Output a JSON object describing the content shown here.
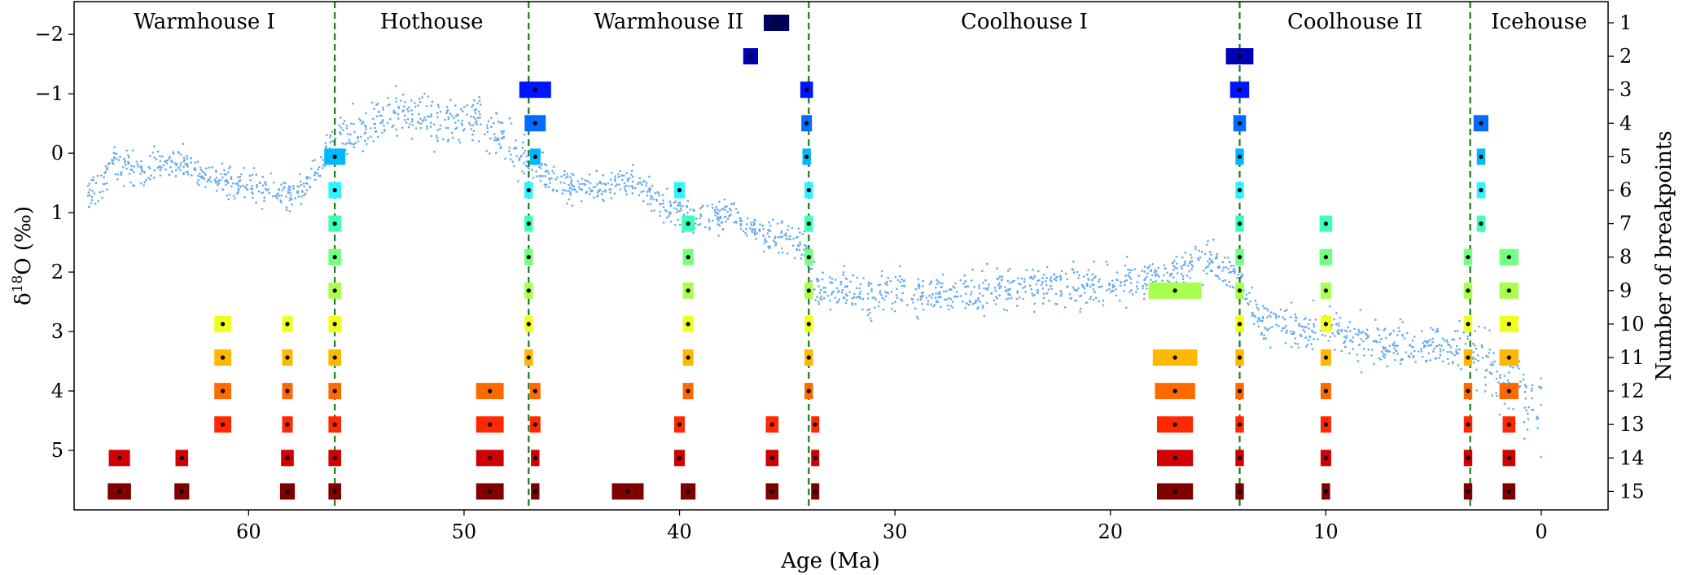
{
  "chart_data": {
    "type": "scatter",
    "xlabel": "Age (Ma)",
    "ylabel_main": "δ",
    "ylabel_sup": "18",
    "ylabel_rest": "O (‰)",
    "ylabel_right": "Number of breakpoints",
    "xlim": [
      68.1,
      -3.1
    ],
    "ylim": [
      6.0,
      -2.55
    ],
    "y_inverted": true,
    "x_ticks": [
      60,
      50,
      40,
      30,
      20,
      10,
      0
    ],
    "y_ticks": [
      {
        "value": -2,
        "label": "−2"
      },
      {
        "value": -1,
        "label": "−1"
      },
      {
        "value": 0,
        "label": "0"
      },
      {
        "value": 1,
        "label": "1"
      },
      {
        "value": 2,
        "label": "2"
      },
      {
        "value": 3,
        "label": "3"
      },
      {
        "value": 4,
        "label": "4"
      },
      {
        "value": 5,
        "label": "5"
      }
    ],
    "right_ticks": [
      "1",
      "2",
      "3",
      "4",
      "5",
      "6",
      "7",
      "8",
      "9",
      "10",
      "11",
      "12",
      "13",
      "14",
      "15"
    ],
    "epochs": [
      {
        "label": "Warmhouse I",
        "start": 68.1,
        "end": 56.0
      },
      {
        "label": "Hothouse",
        "start": 56.0,
        "end": 47.0
      },
      {
        "label": "Warmhouse II",
        "start": 47.0,
        "end": 34.0
      },
      {
        "label": "Coolhouse I",
        "start": 34.0,
        "end": 14.0
      },
      {
        "label": "Coolhouse II",
        "start": 14.0,
        "end": 3.3
      },
      {
        "label": "Icehouse",
        "start": 3.3,
        "end": -3.1
      }
    ],
    "boundaries": [
      56.0,
      47.0,
      34.0,
      14.0,
      3.3
    ],
    "boundary_color": "#1a7a1a",
    "series_color": "#64aaf0",
    "series_name": "δ18O record",
    "curve_anchor_points": [
      [
        67.5,
        0.8
      ],
      [
        66.9,
        0.6
      ],
      [
        66.4,
        0.1
      ],
      [
        65.8,
        0.2
      ],
      [
        65.0,
        0.3
      ],
      [
        64.0,
        0.2
      ],
      [
        63.0,
        0.15
      ],
      [
        62.0,
        0.45
      ],
      [
        61.0,
        0.5
      ],
      [
        60.0,
        0.55
      ],
      [
        59.0,
        0.6
      ],
      [
        58.0,
        0.75
      ],
      [
        57.0,
        0.4
      ],
      [
        56.0,
        -0.3
      ],
      [
        55.0,
        -0.3
      ],
      [
        54.0,
        -0.5
      ],
      [
        53.0,
        -0.7
      ],
      [
        52.0,
        -0.65
      ],
      [
        51.0,
        -0.6
      ],
      [
        50.0,
        -0.6
      ],
      [
        49.0,
        -0.45
      ],
      [
        48.0,
        -0.2
      ],
      [
        47.0,
        0.2
      ],
      [
        46.0,
        0.4
      ],
      [
        45.0,
        0.55
      ],
      [
        44.0,
        0.6
      ],
      [
        43.0,
        0.5
      ],
      [
        42.0,
        0.55
      ],
      [
        41.0,
        0.85
      ],
      [
        40.0,
        1.0
      ],
      [
        39.0,
        1.15
      ],
      [
        38.0,
        1.0
      ],
      [
        37.0,
        1.2
      ],
      [
        36.0,
        1.35
      ],
      [
        35.0,
        1.4
      ],
      [
        34.2,
        1.6
      ],
      [
        33.7,
        2.3
      ],
      [
        33.0,
        2.3
      ],
      [
        30.0,
        2.35
      ],
      [
        27.0,
        2.35
      ],
      [
        24.0,
        2.25
      ],
      [
        22.0,
        2.25
      ],
      [
        20.0,
        2.2
      ],
      [
        18.0,
        2.1
      ],
      [
        17.0,
        2.05
      ],
      [
        16.0,
        1.85
      ],
      [
        15.0,
        1.9
      ],
      [
        14.0,
        2.1
      ],
      [
        13.5,
        2.5
      ],
      [
        13.0,
        2.8
      ],
      [
        12.0,
        2.85
      ],
      [
        11.0,
        3.0
      ],
      [
        10.0,
        2.95
      ],
      [
        9.0,
        3.1
      ],
      [
        8.0,
        3.2
      ],
      [
        7.0,
        3.25
      ],
      [
        6.0,
        3.3
      ],
      [
        5.0,
        3.2
      ],
      [
        4.0,
        3.25
      ],
      [
        3.3,
        3.3
      ],
      [
        2.5,
        3.6
      ],
      [
        2.0,
        3.85
      ],
      [
        1.5,
        3.9
      ],
      [
        1.0,
        4.0
      ],
      [
        0.5,
        4.2
      ],
      [
        0.0,
        4.4
      ]
    ],
    "breakpoint_colors": [
      "#00005f",
      "#0000b4",
      "#0014ff",
      "#006cff",
      "#00b8ff",
      "#2ef4ff",
      "#3cffb8",
      "#72ff82",
      "#a8ff4e",
      "#f0ff1e",
      "#ffb800",
      "#ff6a00",
      "#ff2800",
      "#d00000",
      "#800000"
    ],
    "breakpoints": [
      {
        "row": 1,
        "points": [
          [
            35.5,
            1.2
          ]
        ]
      },
      {
        "row": 2,
        "points": [
          [
            36.7,
            0.7
          ],
          [
            14.0,
            1.3
          ]
        ]
      },
      {
        "row": 3,
        "points": [
          [
            46.7,
            1.5
          ],
          [
            34.1,
            0.6
          ],
          [
            14.0,
            0.9
          ]
        ]
      },
      {
        "row": 4,
        "points": [
          [
            46.7,
            1.0
          ],
          [
            34.1,
            0.5
          ],
          [
            14.0,
            0.6
          ],
          [
            2.8,
            0.7
          ]
        ]
      },
      {
        "row": 5,
        "points": [
          [
            56.0,
            1.0
          ],
          [
            46.7,
            0.5
          ],
          [
            34.1,
            0.4
          ],
          [
            14.0,
            0.4
          ],
          [
            2.8,
            0.4
          ]
        ]
      },
      {
        "row": 6,
        "points": [
          [
            56.0,
            0.6
          ],
          [
            47.0,
            0.4
          ],
          [
            40.0,
            0.5
          ],
          [
            34.0,
            0.4
          ],
          [
            14.0,
            0.4
          ],
          [
            2.8,
            0.4
          ]
        ]
      },
      {
        "row": 7,
        "points": [
          [
            56.0,
            0.6
          ],
          [
            47.0,
            0.4
          ],
          [
            39.6,
            0.6
          ],
          [
            34.0,
            0.4
          ],
          [
            14.0,
            0.4
          ],
          [
            10.0,
            0.6
          ],
          [
            2.8,
            0.4
          ]
        ]
      },
      {
        "row": 8,
        "points": [
          [
            56.0,
            0.6
          ],
          [
            47.0,
            0.4
          ],
          [
            39.6,
            0.5
          ],
          [
            34.0,
            0.4
          ],
          [
            14.0,
            0.4
          ],
          [
            10.0,
            0.6
          ],
          [
            3.4,
            0.4
          ],
          [
            1.5,
            0.9
          ]
        ]
      },
      {
        "row": 9,
        "points": [
          [
            56.0,
            0.6
          ],
          [
            47.0,
            0.4
          ],
          [
            39.6,
            0.5
          ],
          [
            34.0,
            0.4
          ],
          [
            17.0,
            2.5
          ],
          [
            14.0,
            0.4
          ],
          [
            10.0,
            0.5
          ],
          [
            3.4,
            0.4
          ],
          [
            1.5,
            0.9
          ]
        ]
      },
      {
        "row": 10,
        "points": [
          [
            61.2,
            0.8
          ],
          [
            58.2,
            0.5
          ],
          [
            56.0,
            0.6
          ],
          [
            47.0,
            0.4
          ],
          [
            39.6,
            0.5
          ],
          [
            34.0,
            0.4
          ],
          [
            14.0,
            0.4
          ],
          [
            10.0,
            0.5
          ],
          [
            3.4,
            0.4
          ],
          [
            1.5,
            0.9
          ]
        ]
      },
      {
        "row": 11,
        "points": [
          [
            61.2,
            0.8
          ],
          [
            58.2,
            0.5
          ],
          [
            56.0,
            0.6
          ],
          [
            47.0,
            0.4
          ],
          [
            39.6,
            0.5
          ],
          [
            34.0,
            0.4
          ],
          [
            17.0,
            2.1
          ],
          [
            14.0,
            0.4
          ],
          [
            10.0,
            0.5
          ],
          [
            3.4,
            0.4
          ],
          [
            1.5,
            0.9
          ]
        ]
      },
      {
        "row": 12,
        "points": [
          [
            61.2,
            0.8
          ],
          [
            58.2,
            0.5
          ],
          [
            56.0,
            0.6
          ],
          [
            48.8,
            1.3
          ],
          [
            46.7,
            0.5
          ],
          [
            39.6,
            0.5
          ],
          [
            34.0,
            0.4
          ],
          [
            17.0,
            1.9
          ],
          [
            14.0,
            0.4
          ],
          [
            10.0,
            0.5
          ],
          [
            3.4,
            0.4
          ],
          [
            1.5,
            0.9
          ]
        ]
      },
      {
        "row": 13,
        "points": [
          [
            61.2,
            0.8
          ],
          [
            58.2,
            0.5
          ],
          [
            56.0,
            0.6
          ],
          [
            48.8,
            1.3
          ],
          [
            46.7,
            0.5
          ],
          [
            40.0,
            0.5
          ],
          [
            35.7,
            0.6
          ],
          [
            33.7,
            0.3
          ],
          [
            17.0,
            1.7
          ],
          [
            14.0,
            0.4
          ],
          [
            10.0,
            0.5
          ],
          [
            3.4,
            0.4
          ],
          [
            1.5,
            0.6
          ]
        ]
      },
      {
        "row": 14,
        "points": [
          [
            66.0,
            1.0
          ],
          [
            63.1,
            0.6
          ],
          [
            58.2,
            0.6
          ],
          [
            56.0,
            0.6
          ],
          [
            48.8,
            1.3
          ],
          [
            46.7,
            0.4
          ],
          [
            40.0,
            0.5
          ],
          [
            35.7,
            0.6
          ],
          [
            33.7,
            0.3
          ],
          [
            17.0,
            1.7
          ],
          [
            14.0,
            0.4
          ],
          [
            10.0,
            0.5
          ],
          [
            3.4,
            0.4
          ],
          [
            1.5,
            0.6
          ]
        ]
      },
      {
        "row": 15,
        "points": [
          [
            66.0,
            1.1
          ],
          [
            63.1,
            0.7
          ],
          [
            58.2,
            0.7
          ],
          [
            56.0,
            0.6
          ],
          [
            48.8,
            1.3
          ],
          [
            46.7,
            0.4
          ],
          [
            42.4,
            1.5
          ],
          [
            39.6,
            0.7
          ],
          [
            35.7,
            0.6
          ],
          [
            33.7,
            0.3
          ],
          [
            17.0,
            1.7
          ],
          [
            14.0,
            0.4
          ],
          [
            10.0,
            0.4
          ],
          [
            3.4,
            0.4
          ],
          [
            1.5,
            0.6
          ]
        ]
      }
    ]
  }
}
